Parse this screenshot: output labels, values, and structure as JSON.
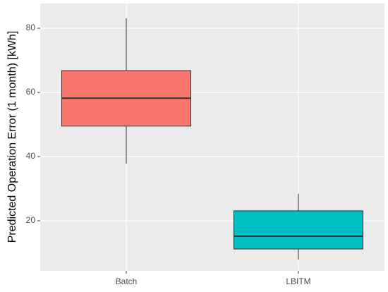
{
  "chart_data": {
    "type": "box",
    "y_label": "Predicted Operation Error (1 month) [kWh]",
    "categories": [
      "Batch",
      "LBITM"
    ],
    "colors": [
      "#f8766d",
      "#00bfc4"
    ],
    "min": [
      37.8,
      7.9
    ],
    "q1": [
      49.5,
      11.2
    ],
    "median": [
      58.2,
      15.2
    ],
    "q3": [
      66.8,
      23.1
    ],
    "max": [
      83.1,
      28.4
    ],
    "ylim": [
      4.4,
      87.7
    ],
    "yticks": [
      20,
      40,
      60,
      80
    ],
    "grid": true
  }
}
